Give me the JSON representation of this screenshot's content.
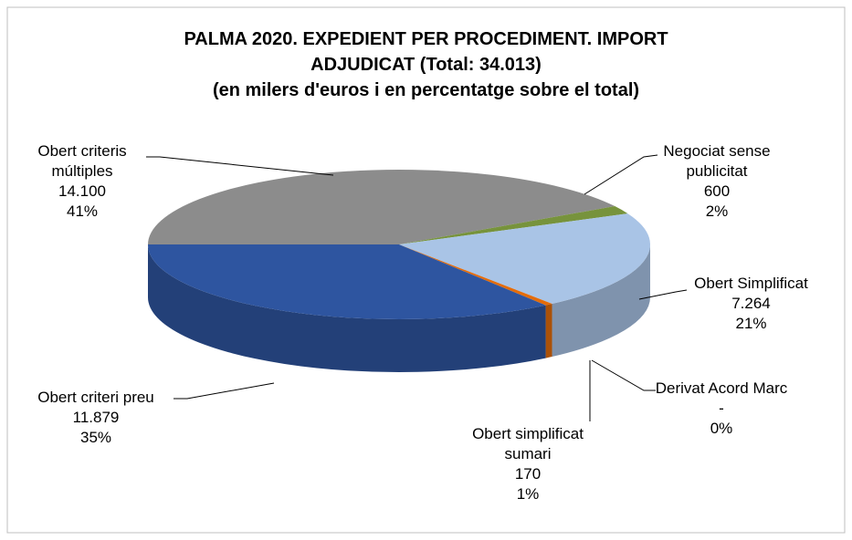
{
  "chart_data": {
    "type": "pie3d",
    "title": [
      "PALMA 2020. EXPEDIENT PER PROCEDIMENT. IMPORT",
      "ADJUDICAT (Total: 34.013)"
    ],
    "subtitle": "(en milers d'euros i en percentatge sobre el total)",
    "categories": [
      "Obert criteris múltiples",
      "Negociat sense publicitat",
      "Obert Simplificat",
      "Derivat Acord Marc",
      "Obert simplificat sumari",
      "Obert criteri preu"
    ],
    "values": [
      14100,
      600,
      7264,
      0,
      170,
      11879
    ],
    "value_labels": [
      "14.100",
      "600",
      "7.264",
      "-",
      "170",
      "11.879"
    ],
    "percents": [
      41,
      2,
      21,
      0,
      1,
      35
    ],
    "percent_labels": [
      "41%",
      "2%",
      "21%",
      "0%",
      "1%",
      "35%"
    ],
    "colors": [
      "#8c8c8c",
      "#77933c",
      "#a9c4e6",
      "#953735",
      "#e46c0a",
      "#2e55a0"
    ]
  }
}
